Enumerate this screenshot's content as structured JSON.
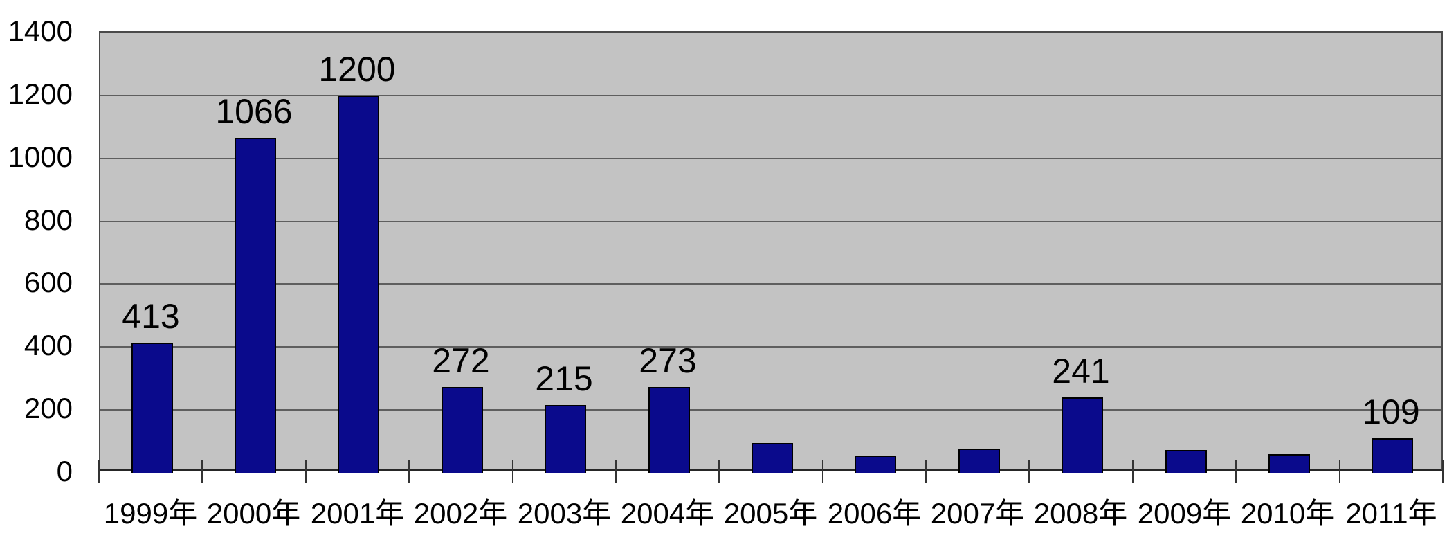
{
  "chart_data": {
    "type": "bar",
    "categories": [
      "1999年",
      "2000年",
      "2001年",
      "2002年",
      "2003年",
      "2004年",
      "2005年",
      "2006年",
      "2007年",
      "2008年",
      "2009年",
      "2010年",
      "2011年"
    ],
    "values": [
      413,
      1066,
      1200,
      272,
      215,
      273,
      94,
      56,
      78,
      241,
      73,
      60,
      109
    ],
    "data_labels": [
      "413",
      "1066",
      "1200",
      "272",
      "215",
      "273",
      "",
      "",
      "",
      "241",
      "",
      "",
      "109"
    ],
    "label_visible": [
      true,
      true,
      true,
      true,
      true,
      true,
      false,
      false,
      false,
      true,
      false,
      false,
      true
    ],
    "unlabeled_values_are_estimates": true,
    "ylim": [
      0,
      1400
    ],
    "ytick_step": 200,
    "yticks": [
      "0",
      "200",
      "400",
      "600",
      "800",
      "1000",
      "1200",
      "1400"
    ],
    "grid": "horizontal",
    "legend": "none",
    "colors": {
      "bar_fill": "#0a0a8c",
      "bar_border": "#000000",
      "plot_background": "#c3c3c3",
      "gridline": "#5e5e5e",
      "axis_line": "#262626",
      "page_background": "#ffffff",
      "text": "#000000"
    }
  }
}
